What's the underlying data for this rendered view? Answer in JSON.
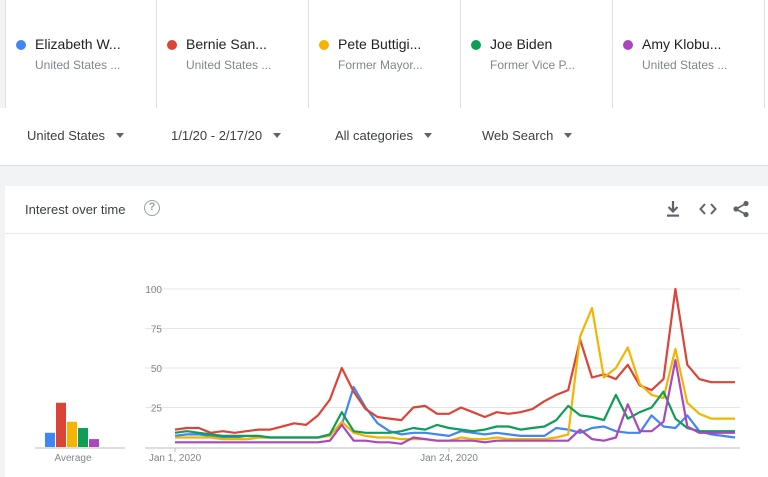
{
  "terms": [
    {
      "name": "Elizabeth W...",
      "sub": "United States ...",
      "color": "#4285f4"
    },
    {
      "name": "Bernie San...",
      "sub": "United States ...",
      "color": "#db4437"
    },
    {
      "name": "Pete Buttigi...",
      "sub": "Former Mayor...",
      "color": "#f4b400"
    },
    {
      "name": "Joe Biden",
      "sub": "Former Vice P...",
      "color": "#0f9d58"
    },
    {
      "name": "Amy Klobu...",
      "sub": "United States ...",
      "color": "#ab47bc"
    }
  ],
  "filters": {
    "region": "United States",
    "daterange": "1/1/20 - 2/17/20",
    "category": "All categories",
    "search_type": "Web Search"
  },
  "card": {
    "title": "Interest over time",
    "help_icon": "help-circle-icon",
    "actions": [
      "download-icon",
      "embed-code-icon",
      "share-icon"
    ]
  },
  "chart_data": {
    "type": "line",
    "y_ticks": [
      "100",
      "75",
      "50",
      "25"
    ],
    "ylim": [
      0,
      100
    ],
    "x_ticks": [
      "Jan 1, 2020",
      "Jan 24, 2020"
    ],
    "dates": [
      "2020-01-01",
      "2020-01-02",
      "2020-01-03",
      "2020-01-04",
      "2020-01-05",
      "2020-01-06",
      "2020-01-07",
      "2020-01-08",
      "2020-01-09",
      "2020-01-10",
      "2020-01-11",
      "2020-01-12",
      "2020-01-13",
      "2020-01-14",
      "2020-01-15",
      "2020-01-16",
      "2020-01-17",
      "2020-01-18",
      "2020-01-19",
      "2020-01-20",
      "2020-01-21",
      "2020-01-22",
      "2020-01-23",
      "2020-01-24",
      "2020-01-25",
      "2020-01-26",
      "2020-01-27",
      "2020-01-28",
      "2020-01-29",
      "2020-01-30",
      "2020-01-31",
      "2020-02-01",
      "2020-02-02",
      "2020-02-03",
      "2020-02-04",
      "2020-02-05",
      "2020-02-06",
      "2020-02-07",
      "2020-02-08",
      "2020-02-09",
      "2020-02-10",
      "2020-02-11",
      "2020-02-12",
      "2020-02-13",
      "2020-02-14",
      "2020-02-15",
      "2020-02-16",
      "2020-02-17"
    ],
    "series": [
      {
        "name": "Elizabeth W...",
        "color": "#4285f4",
        "values": [
          7,
          8,
          8,
          7,
          6,
          6,
          5,
          6,
          6,
          6,
          6,
          6,
          6,
          8,
          14,
          38,
          25,
          15,
          10,
          8,
          9,
          9,
          8,
          7,
          10,
          9,
          8,
          9,
          8,
          7,
          7,
          7,
          12,
          11,
          9,
          12,
          13,
          10,
          9,
          9,
          20,
          13,
          12,
          20,
          10,
          8,
          7,
          6
        ]
      },
      {
        "name": "Bernie San...",
        "color": "#db4437",
        "values": [
          11,
          12,
          12,
          9,
          10,
          9,
          10,
          11,
          11,
          13,
          15,
          14,
          20,
          30,
          50,
          35,
          24,
          19,
          18,
          17,
          25,
          26,
          21,
          21,
          25,
          22,
          19,
          22,
          21,
          22,
          24,
          29,
          33,
          36,
          68,
          44,
          46,
          43,
          52,
          39,
          36,
          43,
          100,
          52,
          43,
          41,
          41,
          41
        ]
      },
      {
        "name": "Pete Buttigi...",
        "color": "#f4b400",
        "values": [
          6,
          6,
          6,
          6,
          5,
          5,
          5,
          6,
          6,
          6,
          6,
          6,
          6,
          7,
          16,
          9,
          7,
          6,
          6,
          5,
          5,
          5,
          4,
          4,
          6,
          5,
          5,
          6,
          5,
          5,
          5,
          5,
          6,
          8,
          70,
          88,
          44,
          50,
          63,
          40,
          33,
          31,
          62,
          28,
          21,
          18,
          18,
          18
        ]
      },
      {
        "name": "Joe Biden",
        "color": "#0f9d58",
        "values": [
          9,
          10,
          9,
          8,
          7,
          7,
          7,
          7,
          6,
          6,
          6,
          6,
          6,
          8,
          22,
          10,
          9,
          9,
          9,
          10,
          12,
          11,
          14,
          12,
          11,
          10,
          11,
          13,
          13,
          11,
          12,
          13,
          17,
          26,
          20,
          19,
          17,
          33,
          18,
          22,
          25,
          35,
          18,
          12,
          10,
          10,
          10,
          10
        ]
      },
      {
        "name": "Amy Klobu...",
        "color": "#ab47bc",
        "values": [
          3,
          3,
          3,
          3,
          3,
          3,
          3,
          3,
          3,
          3,
          3,
          3,
          3,
          4,
          14,
          4,
          4,
          3,
          3,
          2,
          6,
          5,
          4,
          4,
          4,
          4,
          3,
          4,
          4,
          4,
          4,
          4,
          4,
          4,
          11,
          5,
          4,
          6,
          27,
          10,
          10,
          16,
          55,
          13,
          9,
          9,
          9,
          9
        ]
      }
    ],
    "average": {
      "label": "Average",
      "values": [
        9,
        28,
        16,
        12,
        5
      ]
    }
  }
}
